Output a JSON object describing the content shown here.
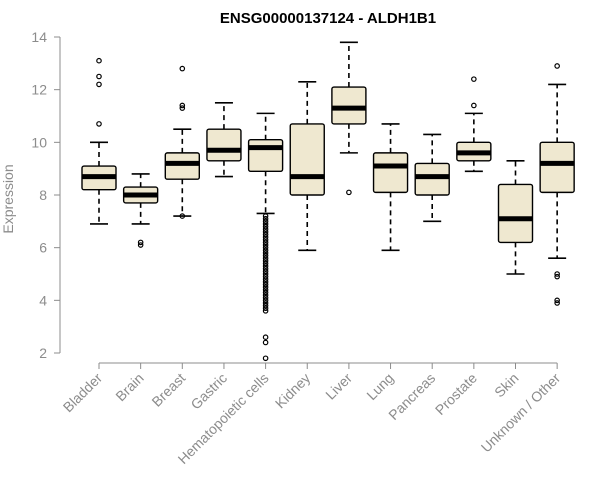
{
  "chart_data": {
    "type": "box",
    "title": "ENSG00000137124 - ALDH1B1",
    "ylabel": "Expression",
    "xlabel": "",
    "ylim": [
      1.5,
      14.2
    ],
    "yticks": [
      2,
      4,
      6,
      8,
      10,
      12,
      14
    ],
    "colors": {
      "box_fill": "#efe8d0",
      "stroke": "#000000",
      "axis": "#8c8c8c"
    },
    "categories": [
      "Bladder",
      "Brain",
      "Breast",
      "Gastric",
      "Hematopoietic cells",
      "Kidney",
      "Liver",
      "Lung",
      "Pancreas",
      "Prostate",
      "Skin",
      "Unknown / Other"
    ],
    "boxes": [
      {
        "whisker_low": 6.9,
        "q1": 8.2,
        "median": 8.7,
        "q3": 9.1,
        "whisker_high": 10.0,
        "outliers": [
          10.7,
          12.2,
          12.5,
          13.1
        ]
      },
      {
        "whisker_low": 6.9,
        "q1": 7.7,
        "median": 8.0,
        "q3": 8.3,
        "whisker_high": 8.8,
        "outliers": [
          6.1,
          6.2
        ]
      },
      {
        "whisker_low": 7.2,
        "q1": 8.6,
        "median": 9.2,
        "q3": 9.6,
        "whisker_high": 10.5,
        "outliers": [
          7.2,
          11.3,
          11.4,
          12.8
        ]
      },
      {
        "whisker_low": 8.7,
        "q1": 9.3,
        "median": 9.7,
        "q3": 10.5,
        "whisker_high": 11.5,
        "outliers": []
      },
      {
        "whisker_low": 7.3,
        "q1": 8.9,
        "median": 9.8,
        "q3": 10.1,
        "whisker_high": 11.1,
        "outliers": [
          1.8,
          2.4,
          2.6,
          3.6,
          3.7,
          3.8,
          3.9,
          4.0,
          4.1,
          4.2,
          4.3,
          4.4,
          4.5,
          4.6,
          4.7,
          4.8,
          4.9,
          5.0,
          5.1,
          5.2,
          5.3,
          5.4,
          5.5,
          5.6,
          5.7,
          5.8,
          5.9,
          6.0,
          6.1,
          6.2,
          6.3,
          6.4,
          6.5,
          6.6,
          6.7,
          6.8,
          6.9,
          7.0,
          7.1,
          7.2
        ]
      },
      {
        "whisker_low": 5.9,
        "q1": 8.0,
        "median": 8.7,
        "q3": 10.7,
        "whisker_high": 12.3,
        "outliers": []
      },
      {
        "whisker_low": 9.6,
        "q1": 10.7,
        "median": 11.3,
        "q3": 12.1,
        "whisker_high": 13.8,
        "outliers": [
          8.1
        ]
      },
      {
        "whisker_low": 5.9,
        "q1": 8.1,
        "median": 9.1,
        "q3": 9.6,
        "whisker_high": 10.7,
        "outliers": []
      },
      {
        "whisker_low": 7.0,
        "q1": 8.0,
        "median": 8.7,
        "q3": 9.2,
        "whisker_high": 10.3,
        "outliers": []
      },
      {
        "whisker_low": 8.9,
        "q1": 9.3,
        "median": 9.6,
        "q3": 10.0,
        "whisker_high": 11.1,
        "outliers": [
          11.4,
          12.4
        ]
      },
      {
        "whisker_low": 5.0,
        "q1": 6.2,
        "median": 7.1,
        "q3": 8.4,
        "whisker_high": 9.3,
        "outliers": []
      },
      {
        "whisker_low": 5.6,
        "q1": 8.1,
        "median": 9.2,
        "q3": 10.0,
        "whisker_high": 12.2,
        "outliers": [
          3.9,
          4.0,
          4.9,
          5.0,
          12.9
        ]
      }
    ]
  }
}
